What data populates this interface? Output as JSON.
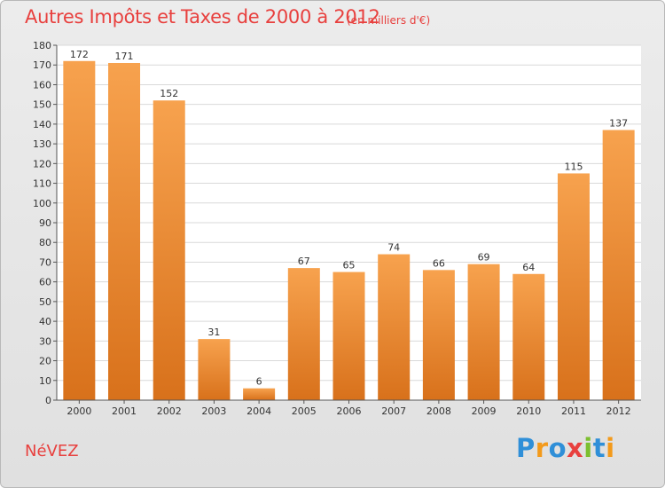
{
  "header": {
    "title": "Autres Impôts et Taxes de 2000 à 2012",
    "subtitle": "(en milliers d'€)"
  },
  "footer": {
    "commune": "NéVEZ",
    "logo_letters": [
      "P",
      "r",
      "o",
      "x",
      "i",
      "t",
      "i"
    ],
    "logo_colors": [
      "#2f8fd8",
      "#f39a1b",
      "#2f8fd8",
      "#e8403e",
      "#7cbf2f",
      "#2f8fd8",
      "#f39a1b"
    ]
  },
  "chart_data": {
    "type": "bar",
    "title": "Autres Impôts et Taxes de 2000 à 2012",
    "categories": [
      "2000",
      "2001",
      "2002",
      "2003",
      "2004",
      "2005",
      "2006",
      "2007",
      "2008",
      "2009",
      "2010",
      "2011",
      "2012"
    ],
    "values": [
      172,
      171,
      152,
      31,
      6,
      67,
      65,
      74,
      66,
      69,
      64,
      115,
      137
    ],
    "ylim": [
      0,
      180
    ],
    "yticks": [
      0,
      10,
      20,
      30,
      40,
      50,
      60,
      70,
      80,
      90,
      100,
      110,
      120,
      130,
      140,
      150,
      160,
      170,
      180
    ],
    "grid": true,
    "bar_color_top": "#f7a24e",
    "bar_color_bottom": "#d8711b"
  }
}
